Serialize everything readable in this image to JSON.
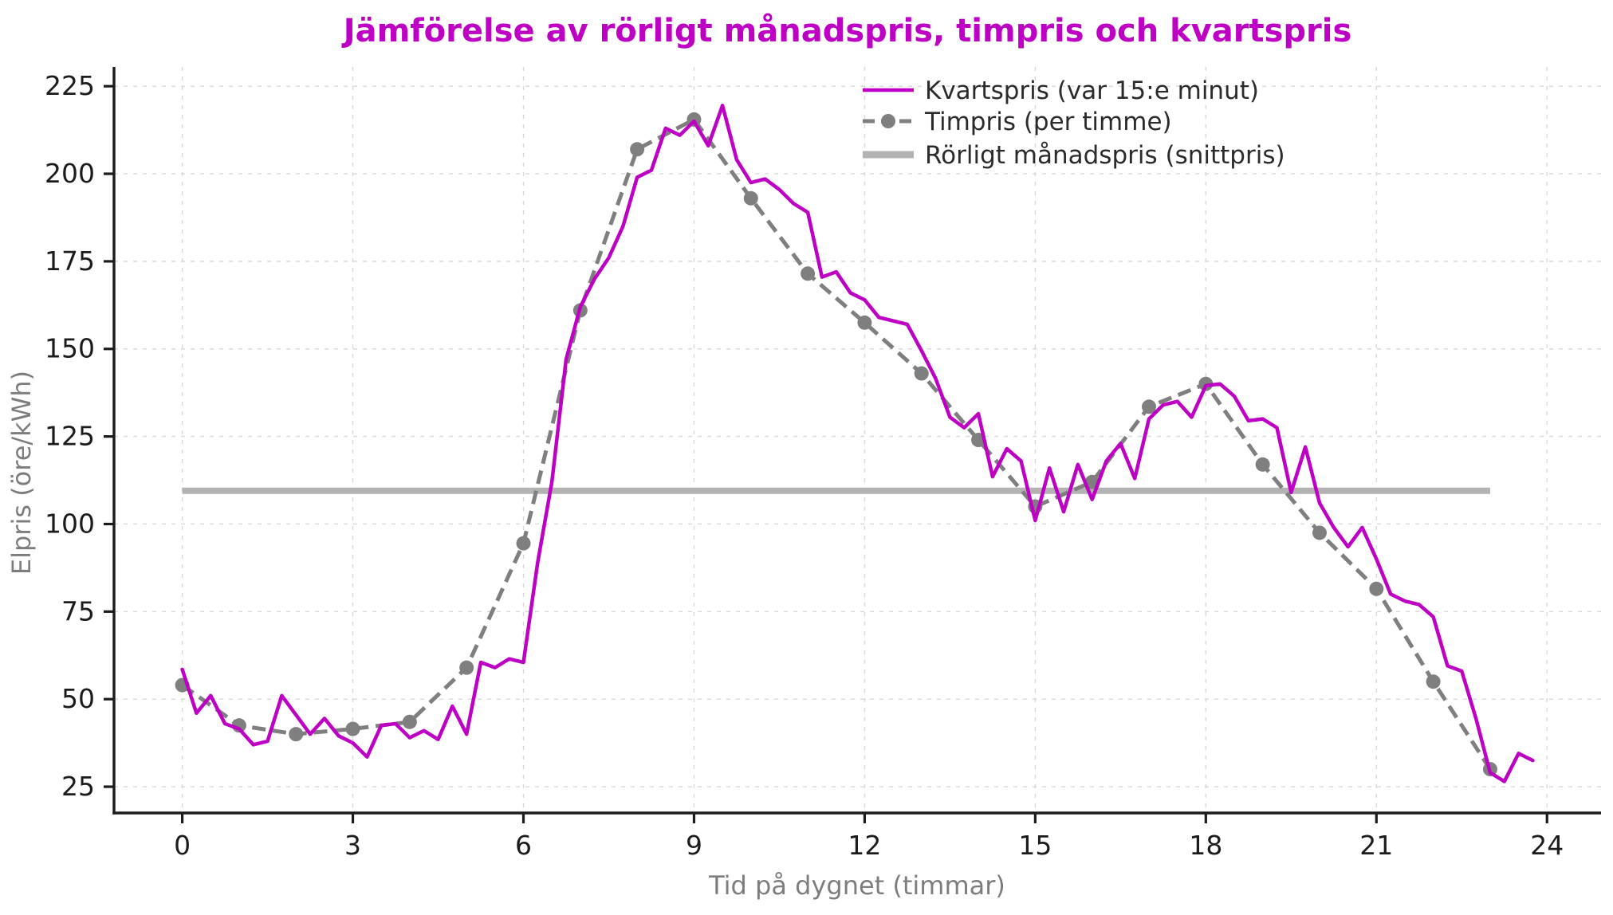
{
  "chart_data": {
    "type": "line",
    "title": "Jämförelse av rörligt månadspris, timpris och kvartspris",
    "xlabel": "Tid på dygnet (timmar)",
    "ylabel": "Elpris (öre/kWh)",
    "title_color": "#bd00c4",
    "x_ticks": [
      0,
      3,
      6,
      9,
      12,
      15,
      18,
      21,
      24
    ],
    "y_ticks": [
      25,
      50,
      75,
      100,
      125,
      150,
      175,
      200,
      225
    ],
    "xlim": [
      -1.2,
      24.95
    ],
    "ylim": [
      17.5,
      230.5
    ],
    "grid": true,
    "legend_position": "upper right",
    "axis_text_color": "#1c1c1c",
    "axis_label_color": "#7d7d7d",
    "grid_color": "#d8d8d8",
    "series": [
      {
        "name": "Kvartspris (var 15:e minut)",
        "style": "solid",
        "color": "#bd00c4",
        "line_width": 4.5,
        "x_start": 0,
        "x_step": 0.25,
        "values": [
          58.5,
          46,
          51,
          43,
          41.5,
          37,
          38,
          51,
          45.5,
          40,
          44.5,
          39.5,
          37.5,
          33.5,
          42.5,
          43,
          39,
          41,
          38.5,
          48,
          40,
          60.5,
          59,
          61.5,
          60.5,
          89,
          112,
          147,
          162,
          170,
          176,
          185,
          199,
          201,
          213,
          211,
          215,
          208,
          219.5,
          204,
          197.5,
          198.5,
          195.5,
          191.5,
          189,
          170.5,
          172,
          166,
          164,
          159,
          158,
          157,
          149.5,
          141.5,
          130.5,
          127.5,
          131.5,
          113.5,
          121.5,
          118,
          101,
          116,
          103.5,
          117,
          107,
          118,
          123,
          113,
          130,
          134,
          135,
          130.5,
          139.5,
          140,
          136.5,
          129.5,
          130,
          127.5,
          109,
          122,
          106,
          99,
          93.5,
          99,
          90,
          80,
          78,
          77,
          73.5,
          59.5,
          58,
          44.5,
          29,
          26.5,
          34.5,
          32.5
        ]
      },
      {
        "name": "Timpris (per timme)",
        "style": "dashed-with-markers",
        "color": "#7f7f7f",
        "line_width": 5,
        "marker_radius": 9,
        "x_start": 0,
        "x_step": 1,
        "values": [
          54,
          42.5,
          40,
          41.5,
          43.5,
          59,
          94.5,
          161,
          207,
          215.5,
          193,
          171.5,
          157.5,
          143,
          124,
          105,
          112,
          133.5,
          140,
          117,
          97.5,
          81.5,
          55,
          30
        ]
      },
      {
        "name": "Rörligt månadspris (snittpris)",
        "style": "thick-solid",
        "color": "#b3b3b3",
        "line_width": 8,
        "x_range": [
          0,
          23
        ],
        "value": 109.5
      }
    ]
  }
}
